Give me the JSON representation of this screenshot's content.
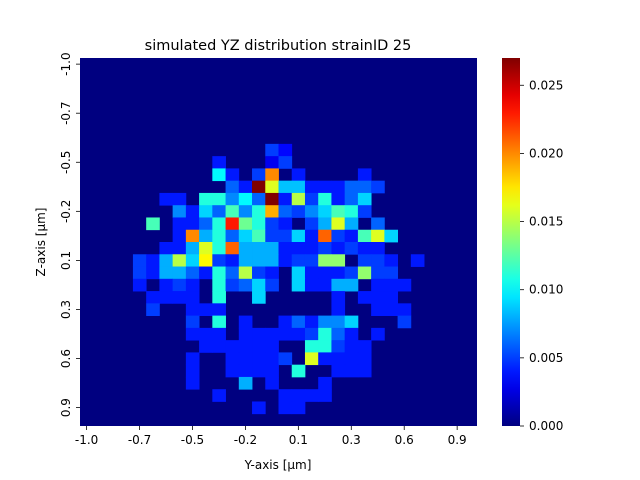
{
  "chart_data": {
    "type": "heatmap",
    "title": "simulated YZ distribution strainID 25",
    "xlabel": "Y-axis [μm]",
    "ylabel": "Z-axis [μm]",
    "x_ticks": [
      "-1.0",
      "-0.7",
      "-0.5",
      "-0.2",
      "0.1",
      "0.3",
      "0.6",
      "0.9"
    ],
    "y_ticks": [
      "-1.0",
      "-0.7",
      "-0.5",
      "-0.2",
      "0.1",
      "0.3",
      "0.6",
      "0.9"
    ],
    "x_range": [
      -1.0,
      1.0
    ],
    "y_range": [
      -1.0,
      1.0
    ],
    "grid_size": 30,
    "colormap": "jet",
    "colorbar": {
      "range": [
        0.0,
        0.027
      ],
      "ticks": [
        "0.000",
        "0.005",
        "0.010",
        "0.015",
        "0.020",
        "0.025"
      ]
    },
    "cells": [
      [
        7,
        14,
        0.005
      ],
      [
        7,
        15,
        0.0035
      ],
      [
        8,
        10,
        0.004
      ],
      [
        8,
        14,
        0.003
      ],
      [
        8,
        15,
        0.005
      ],
      [
        9,
        10,
        0.01
      ],
      [
        9,
        11,
        0.004
      ],
      [
        9,
        13,
        0.005
      ],
      [
        9,
        14,
        0.02
      ],
      [
        9,
        16,
        0.004
      ],
      [
        9,
        21,
        0.004
      ],
      [
        10,
        11,
        0.006
      ],
      [
        10,
        12,
        0.004
      ],
      [
        10,
        13,
        0.027
      ],
      [
        10,
        14,
        0.016
      ],
      [
        10,
        15,
        0.0085
      ],
      [
        10,
        16,
        0.0085
      ],
      [
        10,
        17,
        0.004
      ],
      [
        10,
        18,
        0.004
      ],
      [
        10,
        19,
        0.004
      ],
      [
        10,
        20,
        0.006
      ],
      [
        10,
        21,
        0.006
      ],
      [
        10,
        22,
        0.005
      ],
      [
        11,
        6,
        0.004
      ],
      [
        11,
        7,
        0.004
      ],
      [
        11,
        9,
        0.011
      ],
      [
        11,
        10,
        0.011
      ],
      [
        11,
        11,
        0.007
      ],
      [
        11,
        12,
        0.01
      ],
      [
        11,
        13,
        0.006
      ],
      [
        11,
        14,
        0.027
      ],
      [
        11,
        15,
        0.004
      ],
      [
        11,
        16,
        0.015
      ],
      [
        11,
        17,
        0.005
      ],
      [
        11,
        18,
        0.011
      ],
      [
        11,
        19,
        0.004
      ],
      [
        11,
        20,
        0.006
      ],
      [
        11,
        21,
        0.009
      ],
      [
        12,
        7,
        0.007
      ],
      [
        12,
        8,
        0.004
      ],
      [
        12,
        9,
        0.009
      ],
      [
        12,
        10,
        0.006
      ],
      [
        12,
        11,
        0.012
      ],
      [
        12,
        12,
        0.007
      ],
      [
        12,
        13,
        0.011
      ],
      [
        12,
        14,
        0.019
      ],
      [
        12,
        15,
        0.006
      ],
      [
        12,
        16,
        0.005
      ],
      [
        12,
        17,
        0.007
      ],
      [
        12,
        18,
        0.009
      ],
      [
        12,
        19,
        0.012
      ],
      [
        12,
        20,
        0.011
      ],
      [
        12,
        21,
        0.005
      ],
      [
        13,
        5,
        0.012
      ],
      [
        13,
        7,
        0.004
      ],
      [
        13,
        8,
        0.004
      ],
      [
        13,
        9,
        0.006
      ],
      [
        13,
        10,
        0.011
      ],
      [
        13,
        11,
        0.023
      ],
      [
        13,
        12,
        0.013
      ],
      [
        13,
        13,
        0.011
      ],
      [
        13,
        14,
        0.005
      ],
      [
        13,
        15,
        0.004
      ],
      [
        13,
        17,
        0.005
      ],
      [
        13,
        18,
        0.008
      ],
      [
        13,
        19,
        0.016
      ],
      [
        13,
        20,
        0.008
      ],
      [
        13,
        22,
        0.006
      ],
      [
        14,
        7,
        0.004
      ],
      [
        14,
        8,
        0.02
      ],
      [
        14,
        9,
        0.008
      ],
      [
        14,
        10,
        0.011
      ],
      [
        14,
        11,
        0.006
      ],
      [
        14,
        12,
        0.009
      ],
      [
        14,
        13,
        0.012
      ],
      [
        14,
        14,
        0.005
      ],
      [
        14,
        15,
        0.005
      ],
      [
        14,
        16,
        0.009
      ],
      [
        14,
        17,
        0.004
      ],
      [
        14,
        18,
        0.021
      ],
      [
        14,
        19,
        0.005
      ],
      [
        14,
        20,
        0.004
      ],
      [
        14,
        21,
        0.012
      ],
      [
        14,
        22,
        0.016
      ],
      [
        14,
        23,
        0.009
      ],
      [
        15,
        6,
        0.004
      ],
      [
        15,
        7,
        0.004
      ],
      [
        15,
        8,
        0.008
      ],
      [
        15,
        9,
        0.016
      ],
      [
        15,
        10,
        0.011
      ],
      [
        15,
        11,
        0.021
      ],
      [
        15,
        12,
        0.008
      ],
      [
        15,
        13,
        0.008
      ],
      [
        15,
        14,
        0.008
      ],
      [
        15,
        15,
        0.004
      ],
      [
        15,
        16,
        0.004
      ],
      [
        15,
        17,
        0.004
      ],
      [
        15,
        18,
        0.005
      ],
      [
        15,
        19,
        0.004
      ],
      [
        15,
        20,
        0.005
      ],
      [
        15,
        21,
        0.004
      ],
      [
        15,
        22,
        0.004
      ],
      [
        16,
        4,
        0.005
      ],
      [
        16,
        5,
        0.004
      ],
      [
        16,
        6,
        0.008
      ],
      [
        16,
        7,
        0.015
      ],
      [
        16,
        8,
        0.009
      ],
      [
        16,
        9,
        0.017
      ],
      [
        16,
        10,
        0.005
      ],
      [
        16,
        11,
        0.004
      ],
      [
        16,
        12,
        0.008
      ],
      [
        16,
        13,
        0.008
      ],
      [
        16,
        14,
        0.008
      ],
      [
        16,
        15,
        0.004
      ],
      [
        16,
        16,
        0.005
      ],
      [
        16,
        17,
        0.005
      ],
      [
        16,
        18,
        0.014
      ],
      [
        16,
        19,
        0.014
      ],
      [
        16,
        21,
        0.005
      ],
      [
        16,
        22,
        0.005
      ],
      [
        16,
        23,
        0.004
      ],
      [
        16,
        25,
        0.004
      ],
      [
        17,
        4,
        0.005
      ],
      [
        17,
        5,
        0.004
      ],
      [
        17,
        6,
        0.008
      ],
      [
        17,
        7,
        0.008
      ],
      [
        17,
        8,
        0.006
      ],
      [
        17,
        9,
        0.004
      ],
      [
        17,
        10,
        0.011
      ],
      [
        17,
        11,
        0.006
      ],
      [
        17,
        12,
        0.015
      ],
      [
        17,
        13,
        0.005
      ],
      [
        17,
        14,
        0.004
      ],
      [
        17,
        16,
        0.009
      ],
      [
        17,
        17,
        0.004
      ],
      [
        17,
        18,
        0.004
      ],
      [
        17,
        19,
        0.004
      ],
      [
        17,
        20,
        0.005
      ],
      [
        17,
        21,
        0.014
      ],
      [
        17,
        22,
        0.005
      ],
      [
        17,
        23,
        0.005
      ],
      [
        18,
        4,
        0.004
      ],
      [
        18,
        6,
        0.004
      ],
      [
        18,
        7,
        0.005
      ],
      [
        18,
        8,
        0.004
      ],
      [
        18,
        10,
        0.011
      ],
      [
        18,
        11,
        0.005
      ],
      [
        18,
        12,
        0.006
      ],
      [
        18,
        13,
        0.009
      ],
      [
        18,
        14,
        0.005
      ],
      [
        18,
        16,
        0.009
      ],
      [
        18,
        17,
        0.004
      ],
      [
        18,
        18,
        0.004
      ],
      [
        18,
        19,
        0.008
      ],
      [
        18,
        20,
        0.008
      ],
      [
        18,
        22,
        0.004
      ],
      [
        18,
        23,
        0.004
      ],
      [
        18,
        24,
        0.004
      ],
      [
        19,
        5,
        0.004
      ],
      [
        19,
        6,
        0.004
      ],
      [
        19,
        7,
        0.004
      ],
      [
        19,
        8,
        0.004
      ],
      [
        19,
        10,
        0.011
      ],
      [
        19,
        13,
        0.009
      ],
      [
        19,
        19,
        0.004
      ],
      [
        19,
        21,
        0.004
      ],
      [
        19,
        22,
        0.004
      ],
      [
        19,
        23,
        0.004
      ],
      [
        20,
        5,
        0.005
      ],
      [
        20,
        8,
        0.004
      ],
      [
        20,
        9,
        0.004
      ],
      [
        20,
        10,
        0.004
      ],
      [
        20,
        19,
        0.004
      ],
      [
        20,
        22,
        0.004
      ],
      [
        20,
        23,
        0.004
      ],
      [
        20,
        24,
        0.004
      ],
      [
        21,
        8,
        0.005
      ],
      [
        21,
        10,
        0.011
      ],
      [
        21,
        12,
        0.004
      ],
      [
        21,
        15,
        0.004
      ],
      [
        21,
        16,
        0.006
      ],
      [
        21,
        17,
        0.004
      ],
      [
        21,
        18,
        0.007
      ],
      [
        21,
        19,
        0.007
      ],
      [
        21,
        20,
        0.009
      ],
      [
        21,
        24,
        0.005
      ],
      [
        22,
        8,
        0.004
      ],
      [
        22,
        9,
        0.004
      ],
      [
        22,
        10,
        0.004
      ],
      [
        22,
        12,
        0.004
      ],
      [
        22,
        13,
        0.004
      ],
      [
        22,
        14,
        0.004
      ],
      [
        22,
        15,
        0.004
      ],
      [
        22,
        16,
        0.004
      ],
      [
        22,
        17,
        0.005
      ],
      [
        22,
        18,
        0.011
      ],
      [
        22,
        19,
        0.006
      ],
      [
        22,
        20,
        0.004
      ],
      [
        22,
        22,
        0.004
      ],
      [
        23,
        9,
        0.004
      ],
      [
        23,
        10,
        0.004
      ],
      [
        23,
        11,
        0.004
      ],
      [
        23,
        12,
        0.004
      ],
      [
        23,
        13,
        0.004
      ],
      [
        23,
        14,
        0.004
      ],
      [
        23,
        17,
        0.011
      ],
      [
        23,
        18,
        0.011
      ],
      [
        23,
        19,
        0.005
      ],
      [
        23,
        20,
        0.004
      ],
      [
        23,
        21,
        0.004
      ],
      [
        24,
        8,
        0.004
      ],
      [
        24,
        11,
        0.004
      ],
      [
        24,
        12,
        0.004
      ],
      [
        24,
        13,
        0.004
      ],
      [
        24,
        14,
        0.004
      ],
      [
        24,
        15,
        0.005
      ],
      [
        24,
        17,
        0.016
      ],
      [
        24,
        18,
        0.004
      ],
      [
        24,
        19,
        0.004
      ],
      [
        24,
        20,
        0.004
      ],
      [
        24,
        21,
        0.004
      ],
      [
        25,
        8,
        0.004
      ],
      [
        25,
        11,
        0.004
      ],
      [
        25,
        12,
        0.004
      ],
      [
        25,
        13,
        0.004
      ],
      [
        25,
        14,
        0.004
      ],
      [
        25,
        16,
        0.011
      ],
      [
        25,
        19,
        0.004
      ],
      [
        25,
        20,
        0.004
      ],
      [
        25,
        21,
        0.004
      ],
      [
        26,
        8,
        0.004
      ],
      [
        26,
        12,
        0.008
      ],
      [
        26,
        14,
        0.004
      ],
      [
        26,
        18,
        0.004
      ],
      [
        27,
        10,
        0.004
      ],
      [
        27,
        15,
        0.004
      ],
      [
        27,
        16,
        0.004
      ],
      [
        27,
        17,
        0.004
      ],
      [
        27,
        18,
        0.004
      ],
      [
        28,
        13,
        0.004
      ],
      [
        28,
        15,
        0.004
      ],
      [
        28,
        16,
        0.004
      ]
    ]
  }
}
